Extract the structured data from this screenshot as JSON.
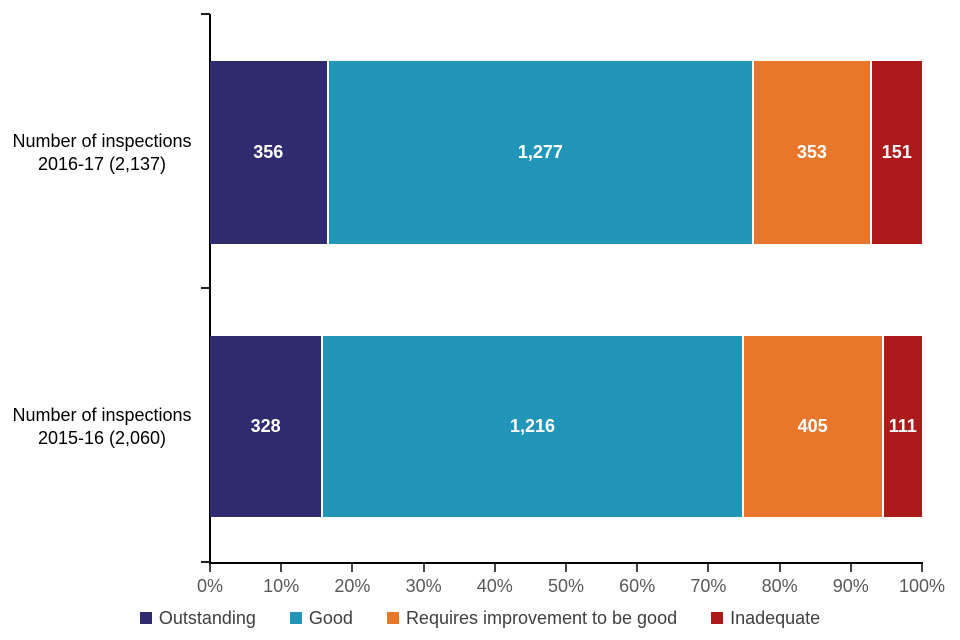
{
  "chart_data": {
    "type": "bar",
    "orientation": "horizontal",
    "stacked": true,
    "title": "",
    "xlabel": "",
    "ylabel": "",
    "background": "#ffffff",
    "axis_color": "#000000",
    "tick_label_color": "#595959",
    "value_label_color": "#ffffff",
    "legend_text_color": "#404040",
    "grid": false,
    "categories": [
      {
        "label_line1": "Number of inspections",
        "label_line2": "2016-17 (2,137)",
        "total": 2137
      },
      {
        "label_line1": "Number of inspections",
        "label_line2": "2015-16 (2,060)",
        "total": 2060
      }
    ],
    "series": [
      {
        "name": "Outstanding",
        "color": "#2e2c6e",
        "values": [
          356,
          328
        ],
        "labels": [
          "356",
          "328"
        ]
      },
      {
        "name": "Good",
        "color": "#2196b8",
        "values": [
          1277,
          1216
        ],
        "labels": [
          "1,277",
          "1,216"
        ]
      },
      {
        "name": "Requires improvement to be good",
        "color": "#e8772c",
        "values": [
          353,
          405
        ],
        "labels": [
          "353",
          "405"
        ]
      },
      {
        "name": "Inadequate",
        "color": "#ad1a1c",
        "values": [
          151,
          111
        ],
        "labels": [
          "151",
          "111"
        ]
      }
    ],
    "x_axis": {
      "min": 0,
      "max": 100,
      "unit": "percent",
      "ticks": [
        "0%",
        "10%",
        "20%",
        "30%",
        "40%",
        "50%",
        "60%",
        "70%",
        "80%",
        "90%",
        "100%"
      ]
    },
    "legend": {
      "position": "bottom",
      "entries": [
        "Outstanding",
        "Good",
        "Requires improvement to be good",
        "Inadequate"
      ]
    }
  }
}
